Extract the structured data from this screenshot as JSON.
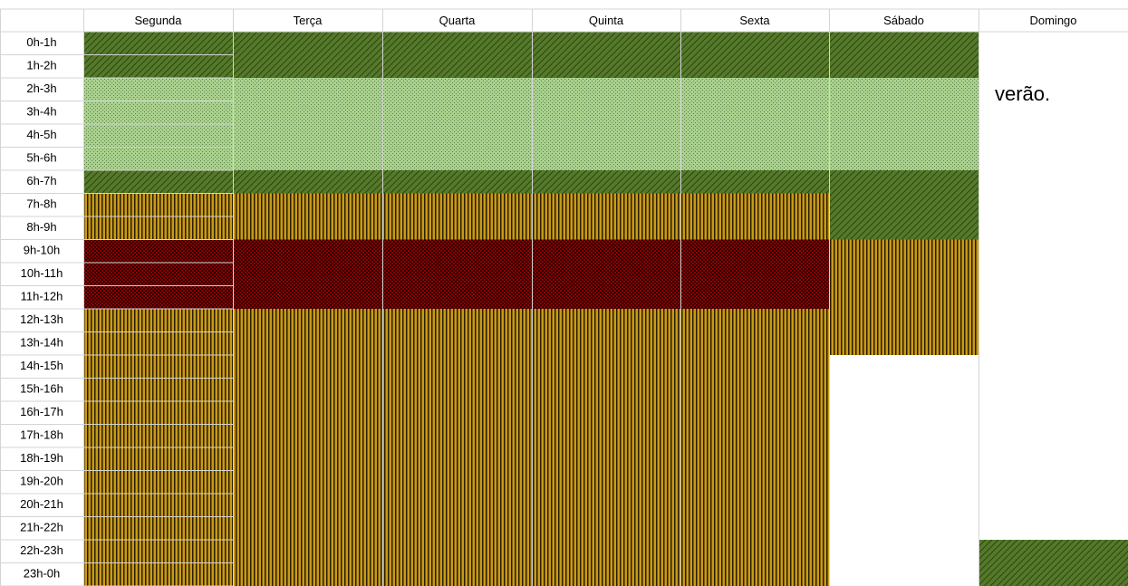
{
  "header": {
    "days": [
      "Segunda",
      "Terça",
      "Quarta",
      "Quinta",
      "Sexta",
      "Sábado",
      "Domingo"
    ]
  },
  "rows": [
    "0h-1h",
    "1h-2h",
    "2h-3h",
    "3h-4h",
    "4h-5h",
    "5h-6h",
    "6h-7h",
    "7h-8h",
    "8h-9h",
    "9h-10h",
    "10h-11h",
    "11h-12h",
    "12h-13h",
    "13h-14h",
    "14h-15h",
    "15h-16h",
    "16h-17h",
    "17h-18h",
    "18h-19h",
    "19h-20h",
    "20h-21h",
    "21h-22h",
    "22h-23h",
    "23h-0h"
  ],
  "note": "verão."
}
